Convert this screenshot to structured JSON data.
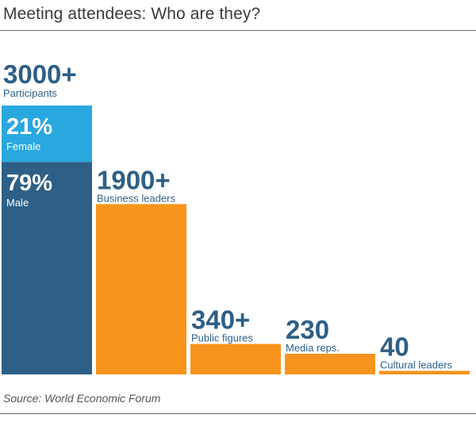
{
  "header": {
    "title": "Meeting attendees: Who are they?"
  },
  "footer": {
    "source": "Source: World Economic Forum"
  },
  "colors": {
    "dark_blue": "#2e5f86",
    "light_blue": "#29a8df",
    "orange": "#f7941d",
    "text_dark": "#2e5f86",
    "text_white": "#ffffff"
  },
  "chart_data": {
    "type": "bar",
    "title": "Meeting attendees: Who are they?",
    "ylim": [
      0,
      3000
    ],
    "total": {
      "value": 3000,
      "value_label": "3000+",
      "label": "Participants",
      "segments": [
        {
          "label": "Female",
          "value_label": "21%",
          "percent": 21
        },
        {
          "label": "Male",
          "value_label": "79%",
          "percent": 79
        }
      ]
    },
    "categories": [
      "Business leaders",
      "Public figures",
      "Media reps.",
      "Cultural leaders"
    ],
    "values": [
      1900,
      340,
      230,
      40
    ],
    "value_labels": [
      "1900+",
      "340+",
      "230",
      "40"
    ]
  }
}
